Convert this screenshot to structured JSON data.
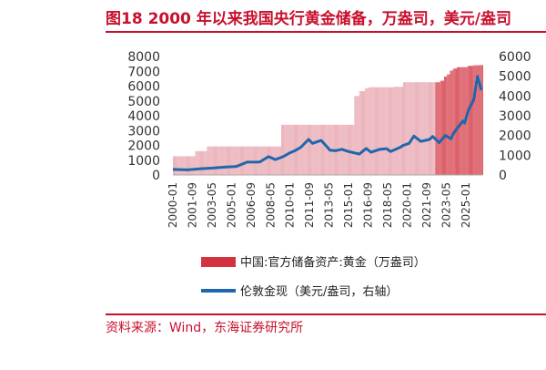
{
  "title": "图18  2000 年以来我国央行黄金储备，万盎司，美元/盎司",
  "source": "资料来源：Wind，东海证券研究所",
  "colors": {
    "accent": "#c8102e",
    "bar": "#e7a1ab",
    "bar_recent": "#d2333f",
    "line": "#1f67ad"
  },
  "chart_data": {
    "type": "bar+line",
    "xlabel": "",
    "ylabel": "",
    "ylim_left": [
      0,
      8000
    ],
    "ylim_right": [
      0,
      6000
    ],
    "y_ticks_left": [
      "8000",
      "7000",
      "6000",
      "5000",
      "4000",
      "3000",
      "2000",
      "1000",
      "0"
    ],
    "y_ticks_right": [
      "6000",
      "5000",
      "4000",
      "3000",
      "2000",
      "1000",
      "0"
    ],
    "x_ticks": [
      "2000-01",
      "2001-09",
      "2003-05",
      "2005-01",
      "2006-09",
      "2008-05",
      "2010-01",
      "2011-09",
      "2013-05",
      "2015-01",
      "2016-09",
      "2018-05",
      "2020-01",
      "2021-09",
      "2023-05",
      "2025-01"
    ],
    "x_range": [
      "2000-01",
      "2026-06"
    ],
    "series": [
      {
        "name": "中国:官方储备资产:黄金（万盎司）",
        "type": "bar",
        "axis": "left",
        "points": [
          [
            "2000-01",
            1267
          ],
          [
            "2001-12",
            1608
          ],
          [
            "2002-12",
            1929
          ],
          [
            "2009-04",
            3389
          ],
          [
            "2015-06",
            3389
          ],
          [
            "2015-07",
            5331
          ],
          [
            "2015-12",
            5666
          ],
          [
            "2016-06",
            5862
          ],
          [
            "2016-10",
            5924
          ],
          [
            "2018-12",
            5956
          ],
          [
            "2019-09",
            6264
          ],
          [
            "2022-11",
            6367
          ],
          [
            "2023-03",
            6650
          ],
          [
            "2023-06",
            6795
          ],
          [
            "2023-09",
            7046
          ],
          [
            "2023-12",
            7187
          ],
          [
            "2024-04",
            7280
          ],
          [
            "2025-03",
            7370
          ],
          [
            "2025-09",
            7406
          ],
          [
            "2026-03",
            7420
          ]
        ]
      },
      {
        "name": "伦敦金现（美元/盎司，右轴）",
        "type": "line",
        "axis": "right",
        "points": [
          [
            "2000-01",
            285
          ],
          [
            "2001-04",
            260
          ],
          [
            "2002-06",
            320
          ],
          [
            "2003-06",
            350
          ],
          [
            "2004-06",
            400
          ],
          [
            "2005-06",
            430
          ],
          [
            "2006-05",
            650
          ],
          [
            "2007-06",
            660
          ],
          [
            "2008-03",
            930
          ],
          [
            "2008-10",
            780
          ],
          [
            "2009-06",
            930
          ],
          [
            "2009-12",
            1100
          ],
          [
            "2010-06",
            1230
          ],
          [
            "2010-12",
            1400
          ],
          [
            "2011-08",
            1800
          ],
          [
            "2011-12",
            1600
          ],
          [
            "2012-09",
            1750
          ],
          [
            "2013-06",
            1250
          ],
          [
            "2013-12",
            1230
          ],
          [
            "2014-06",
            1300
          ],
          [
            "2014-12",
            1200
          ],
          [
            "2015-12",
            1060
          ],
          [
            "2016-07",
            1340
          ],
          [
            "2016-12",
            1150
          ],
          [
            "2017-09",
            1300
          ],
          [
            "2018-04",
            1330
          ],
          [
            "2018-08",
            1190
          ],
          [
            "2019-06",
            1400
          ],
          [
            "2019-09",
            1500
          ],
          [
            "2020-03",
            1600
          ],
          [
            "2020-08",
            1970
          ],
          [
            "2021-03",
            1700
          ],
          [
            "2021-12",
            1800
          ],
          [
            "2022-03",
            1950
          ],
          [
            "2022-10",
            1640
          ],
          [
            "2023-04",
            2000
          ],
          [
            "2023-10",
            1830
          ],
          [
            "2023-12",
            2050
          ],
          [
            "2024-04",
            2350
          ],
          [
            "2024-10",
            2740
          ],
          [
            "2024-12",
            2630
          ],
          [
            "2025-04",
            3300
          ],
          [
            "2025-09",
            3800
          ],
          [
            "2025-10",
            4100
          ],
          [
            "2026-01",
            5000
          ],
          [
            "2026-03",
            4700
          ],
          [
            "2026-05",
            4300
          ]
        ]
      }
    ]
  }
}
